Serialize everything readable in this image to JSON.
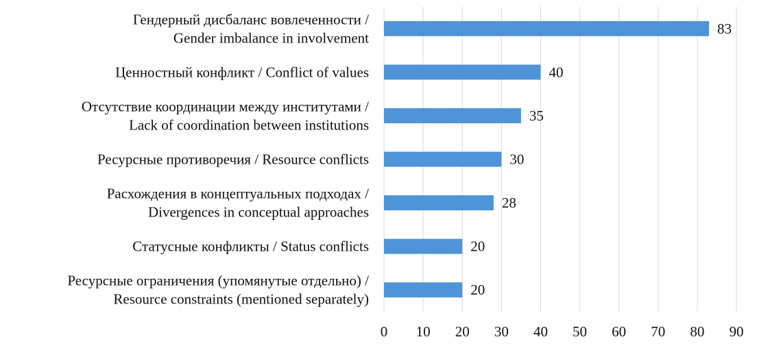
{
  "chart_data": {
    "type": "bar",
    "orientation": "horizontal",
    "title": "",
    "xlabel": "",
    "ylabel": "",
    "xlim": [
      0,
      90
    ],
    "x_ticks": [
      0,
      10,
      20,
      30,
      40,
      50,
      60,
      70,
      80,
      90
    ],
    "grid": "vertical",
    "legend": "none",
    "bar_color": "#4f94d8",
    "categories": [
      {
        "lines": [
          "Гендерный дисбаланс вовлеченности /",
          "Gender imbalance in involvement"
        ],
        "value": 83
      },
      {
        "lines": [
          "Ценностный конфликт / Conflict of values"
        ],
        "value": 40
      },
      {
        "lines": [
          "Отсутствие координации между институтами /",
          "Lack of coordination between institutions"
        ],
        "value": 35
      },
      {
        "lines": [
          "Ресурсные противоречия / Resource conflicts"
        ],
        "value": 30
      },
      {
        "lines": [
          "Расхождения в концептуальных подходах /",
          "Divergences in conceptual approaches"
        ],
        "value": 28
      },
      {
        "lines": [
          "Статусные конфликты / Status conflicts"
        ],
        "value": 20
      },
      {
        "lines": [
          "Ресурсные ограничения (упомянутые отдельно) /",
          "Resource constraints (mentioned separately)"
        ],
        "value": 20
      }
    ]
  }
}
